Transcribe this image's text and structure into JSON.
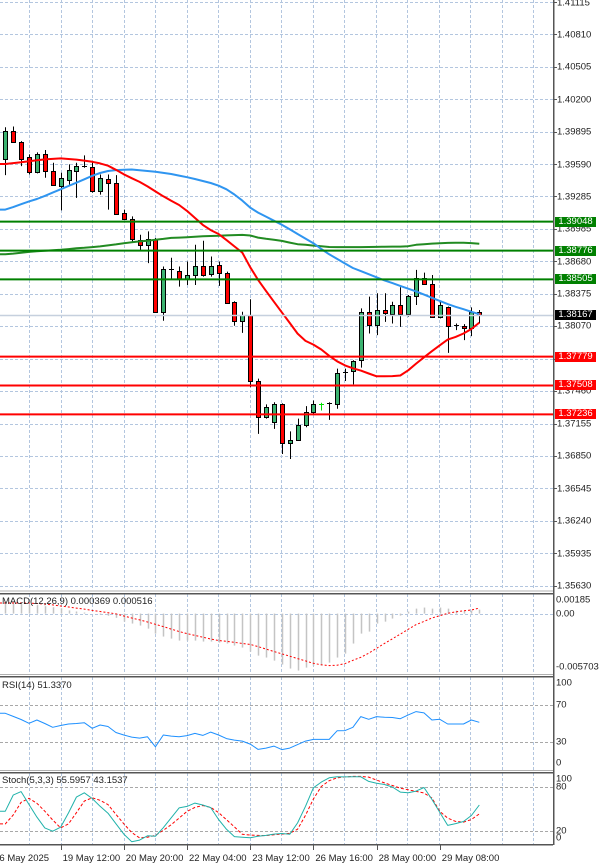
{
  "chart_data": {
    "type": "candlestick",
    "price_axis": {
      "range": [
        1.35586,
        1.41131
      ],
      "labels": [
        "1.41115",
        "1.40810",
        "1.40505",
        "1.40200",
        "1.39895",
        "1.39590",
        "1.39285",
        "1.38985",
        "1.38680",
        "1.38375",
        "1.38070",
        "1.37460",
        "1.37155",
        "1.36850",
        "1.36545",
        "1.36240",
        "1.35935",
        "1.35630"
      ]
    },
    "time_axis": {
      "labels": [
        {
          "text": "6 May 2025",
          "bar": -1
        },
        {
          "text": "19 May 12:00",
          "bar": 7
        },
        {
          "text": "20 May 20:00",
          "bar": 15
        },
        {
          "text": "22 May 04:00",
          "bar": 23
        },
        {
          "text": "23 May 12:00",
          "bar": 31
        },
        {
          "text": "26 May 16:00",
          "bar": 39
        },
        {
          "text": "28 May 00:00",
          "bar": 47
        },
        {
          "text": "29 May 08:00",
          "bar": 55
        }
      ]
    },
    "colors": {
      "bull_body": "#3cb371",
      "bear_body": "#ff0000",
      "wick": "#000000",
      "grid": "#b3c6df",
      "level_grid": "#a8a8a8",
      "axis": "#555555",
      "macd_hist": "#c4c4c4",
      "macd_signal": "#ff0000",
      "rsi": "#1e90ff",
      "stoch_main": "#20b2aa",
      "stoch_signal": "#ff0000"
    },
    "candles_format": [
      "open",
      "high",
      "low",
      "close"
    ],
    "candles": [
      [
        1.3964,
        1.39935,
        1.39485,
        1.399
      ],
      [
        1.399,
        1.39942,
        1.39793,
        1.398
      ],
      [
        1.398,
        1.39805,
        1.3957,
        1.3964
      ],
      [
        1.39655,
        1.3968,
        1.39491,
        1.39513
      ],
      [
        1.39513,
        1.39699,
        1.39501,
        1.3968
      ],
      [
        1.39687,
        1.39721,
        1.3946,
        1.3952
      ],
      [
        1.3952,
        1.39602,
        1.39387,
        1.39397
      ],
      [
        1.39381,
        1.39507,
        1.39154,
        1.3946
      ],
      [
        1.39444,
        1.39586,
        1.39397,
        1.39529
      ],
      [
        1.39522,
        1.39602,
        1.39271,
        1.39567
      ],
      [
        1.39567,
        1.39671,
        1.39555,
        1.39572
      ],
      [
        1.39564,
        1.39617,
        1.39321,
        1.39334
      ],
      [
        1.39334,
        1.39491,
        1.39302,
        1.39454
      ],
      [
        1.39447,
        1.39491,
        1.39161,
        1.39413
      ],
      [
        1.39413,
        1.39485,
        1.39114,
        1.39123
      ],
      [
        1.3913,
        1.39161,
        1.39067,
        1.39073
      ],
      [
        1.39073,
        1.39098,
        1.38847,
        1.38884
      ],
      [
        1.38878,
        1.38925,
        1.38783,
        1.38831
      ],
      [
        1.38831,
        1.38956,
        1.38658,
        1.38887
      ],
      [
        1.38884,
        1.38894,
        1.38189,
        1.38195
      ],
      [
        1.38195,
        1.38626,
        1.38116,
        1.38601
      ],
      [
        1.38601,
        1.38708,
        1.385,
        1.38598
      ],
      [
        1.38588,
        1.38626,
        1.38437,
        1.3851
      ],
      [
        1.3851,
        1.38673,
        1.38453,
        1.38547
      ],
      [
        1.3855,
        1.38831,
        1.38453,
        1.38635
      ],
      [
        1.38635,
        1.38868,
        1.38531,
        1.3855
      ],
      [
        1.38554,
        1.3872,
        1.38531,
        1.38635
      ],
      [
        1.38639,
        1.38673,
        1.38444,
        1.38563
      ],
      [
        1.38563,
        1.38578,
        1.38278,
        1.38286
      ],
      [
        1.38295,
        1.383,
        1.38069,
        1.38113
      ],
      [
        1.38113,
        1.38201,
        1.38003,
        1.3817
      ],
      [
        1.3817,
        1.38318,
        1.37493,
        1.37547
      ],
      [
        1.37547,
        1.37572,
        1.37053,
        1.37216
      ],
      [
        1.37216,
        1.3733,
        1.37197,
        1.37304
      ],
      [
        1.37163,
        1.37351,
        1.371,
        1.37336
      ],
      [
        1.37336,
        1.3734,
        1.36864,
        1.36964
      ],
      [
        1.36964,
        1.37077,
        1.36817,
        1.36996
      ],
      [
        1.36996,
        1.37197,
        1.3699,
        1.37141
      ],
      [
        1.37138,
        1.37314,
        1.37115,
        1.37257
      ],
      [
        1.37257,
        1.37367,
        1.37245,
        1.37336
      ],
      [
        1.3733,
        1.37346,
        1.37273,
        1.3733,
        "#00e000"
      ],
      [
        1.37336,
        1.37351,
        1.37185,
        1.3734
      ],
      [
        1.3733,
        1.37667,
        1.37289,
        1.37629
      ],
      [
        1.37629,
        1.37667,
        1.3755,
        1.37634
      ],
      [
        1.37641,
        1.37745,
        1.37518,
        1.37736
      ],
      [
        1.37745,
        1.38233,
        1.37676,
        1.38201
      ],
      [
        1.38201,
        1.38343,
        1.37997,
        1.38075
      ],
      [
        1.38075,
        1.38375,
        1.37981,
        1.38217
      ],
      [
        1.38217,
        1.38375,
        1.38106,
        1.38186
      ],
      [
        1.38176,
        1.38295,
        1.38091,
        1.38264
      ],
      [
        1.38264,
        1.38431,
        1.38059,
        1.38176
      ],
      [
        1.38176,
        1.38358,
        1.38154,
        1.38349
      ],
      [
        1.38349,
        1.38595,
        1.38264,
        1.38516
      ],
      [
        1.38516,
        1.38569,
        1.38455,
        1.3846
      ],
      [
        1.3846,
        1.38547,
        1.3815,
        1.38154
      ],
      [
        1.38154,
        1.38295,
        1.38139,
        1.38264
      ],
      [
        1.38248,
        1.3825,
        1.37814,
        1.38069
      ],
      [
        1.38069,
        1.38091,
        1.38028,
        1.38072
      ],
      [
        1.38066,
        1.38085,
        1.37934,
        1.38044
      ],
      [
        1.38044,
        1.38242,
        1.37972,
        1.38195
      ],
      [
        1.38195,
        1.38217,
        1.38091,
        1.38167
      ]
    ],
    "moving_averages": [
      {
        "name": "ma-green",
        "color": "#228b22",
        "width": 2,
        "values": [
          1.38741,
          1.38748,
          1.38756,
          1.38764,
          1.38769,
          1.38774,
          1.38779,
          1.38783,
          1.3879,
          1.38797,
          1.38802,
          1.38809,
          1.38815,
          1.38825,
          1.38834,
          1.38845,
          1.38854,
          1.38862,
          1.38868,
          1.38878,
          1.38886,
          1.38895,
          1.38898,
          1.38902,
          1.38906,
          1.3891,
          1.38913,
          1.38915,
          1.38919,
          1.38921,
          1.38923,
          1.38918,
          1.38898,
          1.38887,
          1.38878,
          1.38867,
          1.38851,
          1.38836,
          1.3883,
          1.38823,
          1.38816,
          1.3881,
          1.38809,
          1.38809,
          1.38809,
          1.38809,
          1.3881,
          1.38811,
          1.38812,
          1.38813,
          1.38813,
          1.38817,
          1.3883,
          1.38836,
          1.38842,
          1.38845,
          1.38848,
          1.3885,
          1.3885,
          1.38846,
          1.38841
        ]
      },
      {
        "name": "ma-blue",
        "color": "#2f95f0",
        "width": 2,
        "values": [
          1.39161,
          1.39185,
          1.39212,
          1.39238,
          1.39261,
          1.3929,
          1.39321,
          1.39352,
          1.39383,
          1.39414,
          1.39446,
          1.39479,
          1.39505,
          1.39524,
          1.39532,
          1.39536,
          1.39538,
          1.3953,
          1.39524,
          1.39516,
          1.39506,
          1.39496,
          1.39481,
          1.39466,
          1.39449,
          1.3943,
          1.39411,
          1.39386,
          1.39352,
          1.39303,
          1.39246,
          1.3918,
          1.39133,
          1.39095,
          1.39057,
          1.39019,
          1.38976,
          1.38932,
          1.38889,
          1.38845,
          1.38791,
          1.38741,
          1.38698,
          1.38655,
          1.38612,
          1.38583,
          1.38554,
          1.38525,
          1.38496,
          1.3847,
          1.38444,
          1.38418,
          1.38392,
          1.38362,
          1.38332,
          1.38303,
          1.38273,
          1.38248,
          1.38225,
          1.38201,
          1.38178
        ]
      },
      {
        "name": "ma-red",
        "color": "#ff0000",
        "width": 2,
        "values": [
          1.3959,
          1.39598,
          1.39606,
          1.39615,
          1.39624,
          1.39633,
          1.39638,
          1.39642,
          1.39637,
          1.39631,
          1.39622,
          1.3961,
          1.39595,
          1.39574,
          1.39535,
          1.39493,
          1.39456,
          1.39421,
          1.39379,
          1.39332,
          1.39286,
          1.39244,
          1.39204,
          1.39149,
          1.39083,
          1.39017,
          1.38968,
          1.38932,
          1.38874,
          1.38815,
          1.38757,
          1.3862,
          1.385,
          1.38397,
          1.38296,
          1.38196,
          1.38096,
          1.37996,
          1.37927,
          1.37892,
          1.37846,
          1.37787,
          1.37735,
          1.37697,
          1.3767,
          1.37648,
          1.37621,
          1.37594,
          1.37594,
          1.37596,
          1.37602,
          1.37651,
          1.37714,
          1.37773,
          1.3783,
          1.37886,
          1.37939,
          1.37965,
          1.37997,
          1.38039,
          1.38099
        ]
      }
    ],
    "levels": [
      {
        "price": 1.39048,
        "label": "1.39048",
        "color": "#008000"
      },
      {
        "price": 1.38776,
        "label": "1.38776",
        "color": "#008000"
      },
      {
        "price": 1.38505,
        "label": "1.38505",
        "color": "#008000"
      },
      {
        "price": 1.37779,
        "label": "1.37779",
        "color": "#ff0000"
      },
      {
        "price": 1.37508,
        "label": "1.37508",
        "color": "#ff0000"
      },
      {
        "price": 1.37236,
        "label": "1.37236",
        "color": "#ff0000"
      }
    ],
    "current_price": {
      "price": 1.38167,
      "label": "1.38167",
      "line_color": "#c6d0de",
      "label_bg": "#000000"
    },
    "indicators": {
      "macd": {
        "title": "MACD(12,26,9) 0.000369 0.000516",
        "params": [
          12,
          26,
          9
        ],
        "main_value": 0.000369,
        "signal_value": 0.000516,
        "range": [
          -0.005703,
          0.00185
        ],
        "axis_labels": [
          {
            "text": "0.00185",
            "value": 0.00185
          },
          {
            "text": "0.00",
            "value": 0
          },
          {
            "text": "-0.005703",
            "value": -0.005703
          }
        ],
        "histogram": [
          0.0009,
          0.00095,
          0.0009,
          0.00085,
          0.0008,
          0.0007,
          0.0006,
          0.0005,
          0.0003,
          0.0002,
          0.0001,
          0.0,
          -0.0001,
          -0.0002,
          -0.0004,
          -0.00076,
          -0.00094,
          -0.00113,
          -0.00142,
          -0.00189,
          -0.00217,
          -0.00236,
          -0.00255,
          -0.00255,
          -0.00255,
          -0.00264,
          -0.00264,
          -0.00274,
          -0.00283,
          -0.00302,
          -0.00321,
          -0.00359,
          -0.00397,
          -0.00415,
          -0.00444,
          -0.00481,
          -0.00519,
          -0.00538,
          -0.0051,
          -0.00491,
          -0.00491,
          -0.00463,
          -0.00415,
          -0.00378,
          -0.00283,
          -0.00189,
          -0.0017,
          -0.00094,
          -0.00076,
          -0.00047,
          -0.00019,
          0.00019,
          0.00047,
          0.00057,
          0.00047,
          0.00057,
          0.00047,
          0.00028,
          0.00028,
          0.00028,
          0.000369
        ],
        "signal": [
          0.001,
          0.001,
          0.001,
          0.001,
          0.00095,
          0.00091,
          0.00082,
          0.00072,
          0.00062,
          0.00052,
          0.00042,
          0.0003,
          0.0002,
          8e-05,
          -2e-05,
          -0.00023,
          -0.00042,
          -0.0006,
          -0.00079,
          -0.00101,
          -0.00123,
          -0.00146,
          -0.00169,
          -0.00189,
          -0.00206,
          -0.00223,
          -0.0024,
          -0.00254,
          -0.00262,
          -0.00272,
          -0.00281,
          -0.00291,
          -0.00312,
          -0.00335,
          -0.00358,
          -0.0038,
          -0.00402,
          -0.00425,
          -0.00447,
          -0.00469,
          -0.00483,
          -0.00491,
          -0.00487,
          -0.00472,
          -0.00441,
          -0.00413,
          -0.00374,
          -0.00328,
          -0.00281,
          -0.00238,
          -0.00194,
          -0.00148,
          -0.00104,
          -0.00074,
          -0.00042,
          -0.0002,
          3e-05,
          0.00016,
          0.00026,
          0.00034,
          0.000516
        ]
      },
      "rsi": {
        "title": "RSI(14) 51.3370",
        "period": 14,
        "value": 51.337,
        "range": [
          0,
          100
        ],
        "levels": [
          70,
          30
        ],
        "axis_labels": [
          {
            "text": "100",
            "value": 100
          },
          {
            "text": "70",
            "value": 70
          },
          {
            "text": "30",
            "value": 30
          },
          {
            "text": "0",
            "value": 0
          }
        ],
        "values": [
          61.0,
          57.6,
          54.3,
          50.2,
          53.8,
          50.0,
          45.9,
          47.8,
          49.5,
          50.0,
          50.9,
          44.8,
          48.4,
          46.8,
          40.3,
          37.6,
          35.4,
          34.3,
          35.7,
          24.9,
          37.6,
          36.5,
          35.7,
          37.0,
          39.4,
          37.2,
          40.8,
          37.6,
          33.8,
          32.2,
          31.1,
          27.8,
          22.1,
          23.5,
          25.7,
          21.9,
          23.5,
          27.3,
          31.1,
          32.9,
          32.9,
          32.9,
          42.2,
          42.4,
          45.9,
          57.4,
          54.5,
          57.4,
          56.7,
          56.5,
          55.2,
          59.2,
          62.8,
          61.4,
          53.8,
          54.5,
          49.5,
          49.5,
          49.5,
          53.8,
          51.337
        ]
      },
      "stoch": {
        "title": "Stoch(5,3,3) 55.5957 43.1537",
        "params": [
          5,
          3,
          3
        ],
        "main_value": 55.5957,
        "signal_value": 43.1537,
        "range": [
          0,
          100
        ],
        "levels": [
          80,
          20
        ],
        "axis_labels": [
          {
            "text": "100",
            "value": 100
          },
          {
            "text": "80",
            "value": 80
          },
          {
            "text": "20",
            "value": 20
          },
          {
            "text": "0",
            "value": 0
          }
        ],
        "main": [
          46.9,
          69.3,
          74.2,
          56.3,
          38.8,
          23.7,
          19.2,
          24.7,
          44.6,
          66.5,
          72.5,
          64.6,
          53.7,
          44.1,
          29.6,
          15.1,
          4.6,
          6.8,
          12.8,
          12.1,
          24.0,
          37.8,
          51.5,
          53.6,
          58.2,
          55.6,
          52.0,
          35.4,
          21.8,
          11.6,
          10.9,
          10.2,
          12.1,
          13.4,
          15.2,
          16.0,
          14.9,
          30.7,
          53.7,
          79.5,
          87.3,
          93.3,
          94.8,
          94.6,
          94.7,
          94.7,
          88.4,
          85.9,
          84.0,
          80.5,
          73.5,
          72.7,
          74.9,
          79.9,
          63.3,
          45.3,
          27.2,
          29.7,
          32.6,
          41.0,
          55.5957
        ],
        "signal": [
          29.3,
          41.7,
          59.3,
          64.9,
          57.9,
          46.9,
          34.7,
          23.7,
          29.3,
          44.8,
          61.0,
          65.6,
          62.1,
          56.1,
          42.7,
          29.4,
          17.4,
          9.8,
          10.8,
          13.4,
          20.4,
          28.2,
          37.4,
          46.7,
          52.2,
          54.8,
          52.2,
          45.0,
          35.1,
          25.1,
          14.8,
          13.8,
          13.4,
          13.1,
          14.1,
          15.1,
          16.2,
          21.9,
          41.3,
          63.9,
          81.2,
          89.3,
          93.4,
          94.6,
          95.3,
          95.3,
          94.3,
          90.1,
          86.2,
          82.6,
          78.9,
          76.7,
          74.5,
          72.2,
          65.3,
          46.6,
          37.4,
          32.8,
          31.7,
          35.4,
          43.1537
        ]
      }
    }
  }
}
